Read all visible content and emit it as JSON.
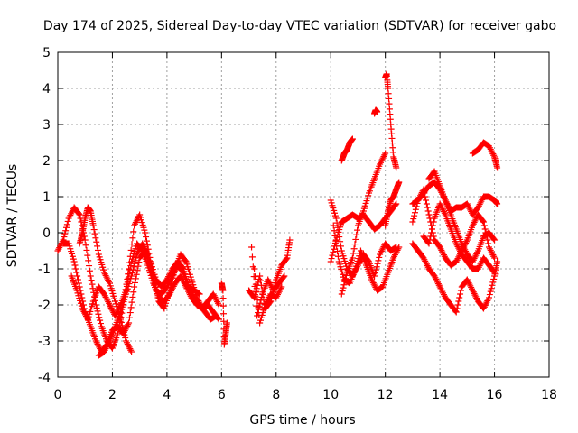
{
  "chart_data": {
    "type": "scatter",
    "title": "Day 174 of 2025, Sidereal Day-to-day VTEC variation (SDTVAR) for receiver gabo",
    "xlabel": "GPS time / hours",
    "ylabel": "SDTVAR / TECUs",
    "xlim": [
      0,
      18
    ],
    "ylim": [
      -4,
      5
    ],
    "xticks": [
      0,
      2,
      4,
      6,
      8,
      10,
      12,
      14,
      16,
      18
    ],
    "yticks": [
      -4,
      -3,
      -2,
      -1,
      0,
      1,
      2,
      3,
      4,
      5
    ],
    "grid": true,
    "marker": "+",
    "series": [
      {
        "name": "SDTVAR",
        "color": "#ff0000",
        "tracks": [
          {
            "x": [
              0.0,
              0.2,
              0.4,
              0.6,
              0.8,
              1.0,
              1.2,
              1.4,
              1.6,
              1.8,
              2.0,
              2.2,
              2.4,
              2.6,
              2.8,
              3.0,
              3.2,
              3.4,
              3.6,
              3.8,
              4.0,
              4.2,
              4.4,
              4.6,
              4.8,
              5.0,
              5.2,
              5.4,
              5.6,
              5.8
            ],
            "y": [
              -0.5,
              -0.2,
              0.4,
              0.7,
              0.5,
              -0.2,
              -1.2,
              -2.0,
              -2.6,
              -3.0,
              -3.2,
              -2.8,
              -2.0,
              -1.0,
              0.2,
              0.5,
              0.0,
              -0.8,
              -1.3,
              -1.5,
              -1.3,
              -1.0,
              -0.8,
              -1.0,
              -1.5,
              -1.8,
              -2.0,
              -2.2,
              -2.4,
              -2.3
            ]
          },
          {
            "x": [
              0.2,
              0.4,
              0.6,
              0.8,
              1.0,
              1.2,
              1.4,
              1.6,
              1.8,
              2.0,
              2.2,
              2.4,
              2.6,
              2.8,
              3.0,
              3.2,
              3.4,
              3.6,
              3.8,
              4.0,
              4.2,
              4.4,
              4.6,
              4.8,
              5.0,
              5.2
            ],
            "y": [
              -0.3,
              -0.3,
              -0.8,
              -1.5,
              -2.2,
              -2.6,
              -3.0,
              -3.3,
              -3.1,
              -2.7,
              -2.6,
              -2.8,
              -2.5,
              -1.5,
              -0.7,
              -0.5,
              -1.0,
              -1.6,
              -1.7,
              -1.5,
              -1.2,
              -0.9,
              -1.1,
              -1.5,
              -1.6,
              -1.7
            ]
          },
          {
            "x": [
              0.5,
              0.7,
              0.9,
              1.1,
              1.3,
              1.5,
              1.7,
              1.9,
              2.1,
              2.3,
              2.5,
              2.7,
              2.9,
              3.1,
              3.3,
              3.5,
              3.7,
              3.9,
              4.1,
              4.3,
              4.5,
              4.7,
              4.9,
              5.1,
              5.3,
              5.5,
              5.7,
              5.9
            ],
            "y": [
              -1.2,
              -1.6,
              -2.1,
              -2.4,
              -1.9,
              -1.5,
              -1.7,
              -2.0,
              -2.3,
              -2.0,
              -1.6,
              -0.8,
              -0.3,
              -0.5,
              -0.9,
              -1.4,
              -1.8,
              -1.9,
              -1.7,
              -1.4,
              -1.2,
              -1.5,
              -1.8,
              -2.0,
              -2.1,
              -2.0,
              -2.2,
              -2.4
            ]
          },
          {
            "x": [
              0.8,
              0.9,
              1.0,
              1.1,
              1.2,
              1.3,
              1.5,
              1.7,
              1.9,
              2.1,
              2.3,
              2.5,
              2.7
            ],
            "y": [
              -0.3,
              0.0,
              0.4,
              0.7,
              0.6,
              0.2,
              -0.6,
              -1.1,
              -1.4,
              -1.9,
              -2.4,
              -3.0,
              -3.3
            ]
          },
          {
            "x": [
              1.5,
              1.7,
              1.9,
              2.1,
              2.3,
              2.5,
              2.7,
              2.9,
              3.1,
              3.3,
              3.5,
              3.7,
              3.9,
              4.1,
              4.3,
              4.5,
              4.7,
              4.9,
              5.1,
              5.3,
              5.5,
              5.7,
              5.9
            ],
            "y": [
              -3.4,
              -3.3,
              -3.0,
              -2.6,
              -2.2,
              -1.7,
              -1.2,
              -0.6,
              -0.3,
              -0.6,
              -1.2,
              -1.9,
              -2.1,
              -1.6,
              -1.0,
              -0.6,
              -0.8,
              -1.3,
              -1.8,
              -2.1,
              -1.9,
              -1.7,
              -2.0
            ]
          },
          {
            "x": [
              6.0,
              6.05,
              6.1,
              6.15,
              6.2
            ],
            "y": [
              -1.4,
              -1.6,
              -3.1,
              -2.8,
              -2.5
            ]
          },
          {
            "x": [
              7.0,
              7.2,
              7.4,
              7.6,
              7.8,
              8.0,
              8.2,
              8.4,
              8.5
            ],
            "y": [
              -1.6,
              -1.8,
              -1.2,
              -2.1,
              -1.9,
              -1.3,
              -0.9,
              -0.7,
              -0.2
            ]
          },
          {
            "x": [
              7.1,
              7.3,
              7.5,
              7.7,
              7.9,
              8.1,
              8.3
            ],
            "y": [
              -0.4,
              -2.3,
              -1.7,
              -1.3,
              -1.6,
              -1.4,
              -1.2
            ]
          },
          {
            "x": [
              7.2,
              7.4,
              7.6,
              7.8,
              8.0,
              8.2
            ],
            "y": [
              -1.0,
              -2.5,
              -2.0,
              -1.7,
              -1.8,
              -1.5
            ]
          },
          {
            "x": [
              10.0,
              10.2,
              10.4,
              10.6,
              10.8,
              11.0,
              11.2,
              11.4,
              11.6,
              11.8,
              12.0,
              12.2,
              12.4
            ],
            "y": [
              -0.8,
              -0.2,
              0.3,
              0.4,
              0.5,
              0.4,
              0.5,
              0.3,
              0.1,
              0.2,
              0.4,
              0.6,
              0.8
            ]
          },
          {
            "x": [
              10.0,
              10.2,
              10.4,
              10.6,
              10.8,
              11.0,
              11.2,
              11.4,
              11.6,
              11.8,
              12.0,
              12.2,
              12.4
            ],
            "y": [
              0.9,
              0.4,
              -0.5,
              -1.0,
              -1.2,
              -0.9,
              -0.6,
              -0.8,
              -1.2,
              -0.6,
              -0.3,
              -0.5,
              -0.4
            ]
          },
          {
            "x": [
              10.1,
              10.3,
              10.5,
              10.7,
              10.9,
              11.1,
              11.3,
              11.5,
              11.7,
              11.9,
              12.1,
              12.3,
              12.5
            ],
            "y": [
              0.2,
              -0.8,
              -1.3,
              -1.4,
              -1.0,
              -0.5,
              -0.9,
              -1.3,
              -1.6,
              -1.5,
              -1.1,
              -0.7,
              -0.4
            ]
          },
          {
            "x": [
              10.4,
              10.6,
              10.8,
              11.0,
              11.2,
              11.4,
              11.6,
              11.8,
              12.0
            ],
            "y": [
              -1.7,
              -1.1,
              -0.7,
              0.2,
              0.6,
              1.1,
              1.5,
              1.9,
              2.2
            ]
          },
          {
            "x": [
              10.4,
              10.5,
              10.6,
              10.7,
              10.8
            ],
            "y": [
              2.0,
              2.2,
              2.3,
              2.5,
              2.6
            ]
          },
          {
            "x": [
              11.6,
              11.65,
              11.7
            ],
            "y": [
              3.3,
              3.4,
              3.35
            ]
          },
          {
            "x": [
              12.0,
              12.05,
              12.1,
              12.2,
              12.3,
              12.4
            ],
            "y": [
              4.3,
              4.4,
              4.0,
              3.0,
              2.1,
              1.8
            ]
          },
          {
            "x": [
              12.0,
              12.1,
              12.2,
              12.3,
              12.4,
              12.5
            ],
            "y": [
              0.2,
              0.6,
              0.9,
              1.0,
              1.2,
              1.4
            ]
          },
          {
            "x": [
              13.0,
              13.2,
              13.4,
              13.6,
              13.8,
              14.0,
              14.2,
              14.4,
              14.6,
              14.8,
              15.0,
              15.2,
              15.4,
              15.6,
              15.8,
              16.0,
              16.1
            ],
            "y": [
              0.8,
              0.9,
              1.1,
              1.3,
              1.4,
              1.2,
              0.9,
              0.6,
              0.7,
              0.7,
              0.8,
              0.5,
              0.7,
              1.0,
              1.0,
              0.9,
              0.8
            ]
          },
          {
            "x": [
              13.0,
              13.2,
              13.4,
              13.6,
              13.8,
              14.0,
              14.2,
              14.4,
              14.6,
              14.8,
              15.0,
              15.2,
              15.4,
              15.6,
              15.8,
              16.0,
              16.1
            ],
            "y": [
              -0.3,
              -0.5,
              -0.7,
              -1.0,
              -1.2,
              -1.5,
              -1.8,
              -2.0,
              -2.2,
              -1.5,
              -1.3,
              -1.6,
              -1.9,
              -2.1,
              -1.8,
              -1.2,
              -0.8
            ]
          },
          {
            "x": [
              13.0,
              13.2,
              13.4,
              13.6,
              13.8,
              14.0,
              14.2,
              14.4,
              14.6,
              14.8,
              15.0,
              15.2,
              15.4,
              15.6,
              15.8,
              16.0
            ],
            "y": [
              0.3,
              0.9,
              1.2,
              0.5,
              -0.2,
              -0.4,
              -0.7,
              -0.9,
              -0.8,
              -0.5,
              -0.2,
              0.2,
              0.5,
              0.3,
              -0.4,
              -0.7
            ]
          },
          {
            "x": [
              13.4,
              13.6,
              13.8,
              14.0,
              14.2,
              14.4,
              14.6,
              14.8,
              15.0,
              15.2,
              15.4,
              15.6,
              15.8,
              16.0
            ],
            "y": [
              -0.1,
              -0.3,
              0.4,
              0.8,
              0.5,
              0.1,
              -0.3,
              -0.6,
              -0.8,
              -1.0,
              -1.0,
              -0.7,
              -0.9,
              -1.1
            ]
          },
          {
            "x": [
              13.6,
              13.8,
              14.0,
              14.2,
              14.4,
              14.6,
              14.8,
              15.0,
              15.2,
              15.4,
              15.6,
              15.8,
              16.0
            ],
            "y": [
              1.5,
              1.7,
              1.3,
              0.9,
              0.5,
              0.1,
              -0.3,
              -0.6,
              -0.8,
              -0.5,
              -0.1,
              0.0,
              -0.2
            ]
          },
          {
            "x": [
              15.2,
              15.4,
              15.6,
              15.8,
              16.0,
              16.1
            ],
            "y": [
              2.2,
              2.3,
              2.5,
              2.4,
              2.1,
              1.8
            ]
          }
        ]
      }
    ]
  }
}
